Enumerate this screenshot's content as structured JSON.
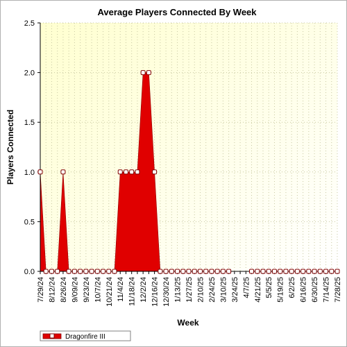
{
  "chart_data": {
    "type": "area",
    "title": "Average Players Connected By Week",
    "xlabel": "Week",
    "ylabel": "Players Connected",
    "ylim": [
      0,
      2.5
    ],
    "yticks": [
      "0.0",
      "0.5",
      "1.0",
      "1.5",
      "2.0",
      "2.5"
    ],
    "x": [
      "7/29/24",
      "8/5/24",
      "8/12/24",
      "8/19/24",
      "8/26/24",
      "9/2/24",
      "9/9/24",
      "9/16/24",
      "9/23/24",
      "9/30/24",
      "10/7/24",
      "10/14/24",
      "10/21/24",
      "10/28/24",
      "11/4/24",
      "11/11/24",
      "11/18/24",
      "11/25/24",
      "12/2/24",
      "12/9/24",
      "12/16/24",
      "12/23/24",
      "12/30/24",
      "1/6/25",
      "1/13/25",
      "1/20/25",
      "1/27/25",
      "2/3/25",
      "2/10/25",
      "2/17/25",
      "2/24/25",
      "3/3/25",
      "3/10/25",
      "3/17/25",
      "3/24/25",
      "3/31/25",
      "4/7/25",
      "4/14/25",
      "4/21/25",
      "4/28/25",
      "5/5/25",
      "5/12/25",
      "5/19/25",
      "5/26/25",
      "6/2/25",
      "6/9/25",
      "6/16/25",
      "6/23/25",
      "6/30/25",
      "7/7/25",
      "7/14/25",
      "7/21/25",
      "7/28/25"
    ],
    "x_tick_labels": [
      "7/29/24",
      "8/12/24",
      "8/26/24",
      "9/09/24",
      "9/23/24",
      "10/7/24",
      "10/21/24",
      "11/4/24",
      "11/18/24",
      "12/2/24",
      "12/16/24",
      "12/30/24",
      "1/13/25",
      "1/27/25",
      "2/10/25",
      "2/24/25",
      "3/10/25",
      "3/24/25",
      "4/7/25",
      "4/21/25",
      "5/5/25",
      "5/19/25",
      "6/2/25",
      "6/16/25",
      "6/30/25",
      "7/14/25",
      "7/28/25"
    ],
    "series": [
      {
        "name": "Dragonfire III",
        "color": "#e00000",
        "values": [
          1.0,
          0.0,
          0.0,
          0.0,
          1.0,
          0.0,
          0.0,
          0.0,
          0.0,
          0.0,
          0.0,
          0.0,
          0.0,
          0.0,
          1.0,
          1.0,
          1.0,
          1.0,
          2.0,
          2.0,
          1.0,
          0.0,
          0.0,
          0.0,
          0.0,
          0.0,
          0.0,
          0.0,
          0.0,
          0.0,
          0.0,
          0.0,
          0.0,
          0.0,
          null,
          null,
          null,
          0.0,
          0.0,
          0.0,
          0.0,
          0.0,
          0.0,
          0.0,
          0.0,
          0.0,
          0.0,
          0.0,
          0.0,
          0.0,
          0.0,
          0.0,
          0.0
        ]
      }
    ],
    "grid": true,
    "legend_position": "bottom-left",
    "colors": {
      "plot_bg_top": "#ffffd0",
      "plot_bg_bottom": "#ffffff",
      "grid": "#c8c8a0"
    }
  }
}
